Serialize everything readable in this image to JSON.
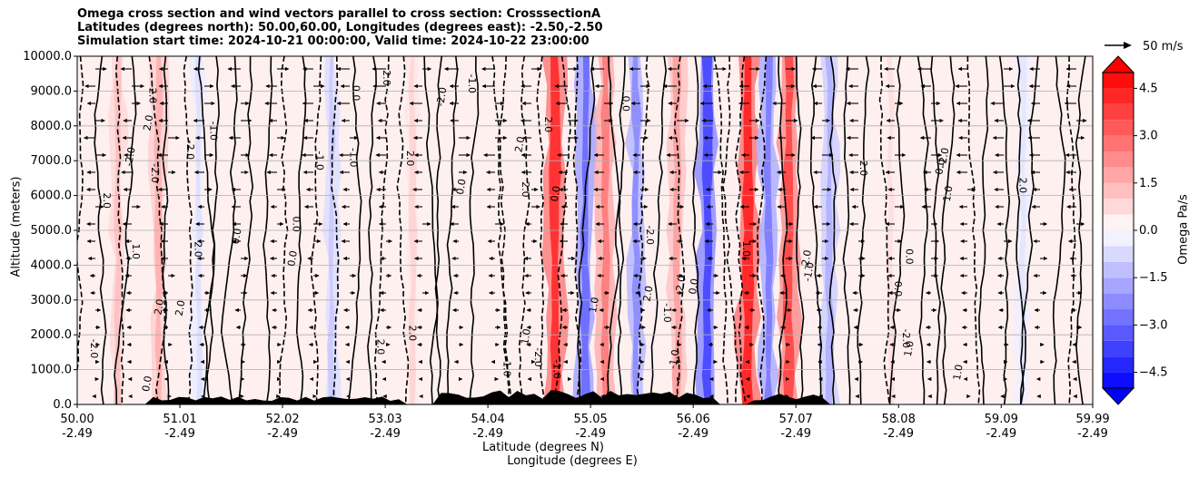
{
  "figure": {
    "title_lines": [
      "Omega cross section and wind vectors parallel to cross section: CrosssectionA",
      "Latitudes (degrees north): 50.00,60.00, Longitudes (degrees east): -2.50,-2.50",
      "Simulation start time: 2024-10-21 00:00:00, Valid time: 2024-10-22 23:00:00"
    ],
    "reference_vector_label": "50 m/s"
  },
  "chart_data": {
    "type": "heatmap",
    "ylabel": "Altitude (meters)",
    "xlabel_line1": "Latitude (degrees N)",
    "xlabel_line2": "Longitude (degrees E)",
    "ylim": [
      0,
      10000
    ],
    "yticks": [
      "0.0",
      "1000.0",
      "2000.0",
      "3000.0",
      "4000.0",
      "5000.0",
      "6000.0",
      "7000.0",
      "8000.0",
      "9000.0",
      "10000.0"
    ],
    "xlim": [
      50.0,
      59.99
    ],
    "xticks": [
      {
        "lat": "50.00",
        "lon": "-2.49"
      },
      {
        "lat": "51.01",
        "lon": "-2.49"
      },
      {
        "lat": "52.02",
        "lon": "-2.49"
      },
      {
        "lat": "53.03",
        "lon": "-2.49"
      },
      {
        "lat": "54.04",
        "lon": "-2.49"
      },
      {
        "lat": "55.05",
        "lon": "-2.49"
      },
      {
        "lat": "56.06",
        "lon": "-2.49"
      },
      {
        "lat": "57.07",
        "lon": "-2.49"
      },
      {
        "lat": "58.08",
        "lon": "-2.49"
      },
      {
        "lat": "59.09",
        "lon": "-2.49"
      },
      {
        "lat": "59.99",
        "lon": "-2.49"
      }
    ],
    "grid": "horizontal",
    "colorbar": {
      "label": "Omega Pa/s",
      "range": [
        -5.0,
        5.0
      ],
      "ticks": [
        "4.5",
        "3.0",
        "1.5",
        "0.0",
        "−1.5",
        "−3.0",
        "−4.5"
      ],
      "extend": "both",
      "colors": {
        "negative": "#0000ff",
        "zero": "#ffffff",
        "positive": "#ff0000"
      }
    },
    "contour_levels": [
      -2.0,
      -1.0,
      0.0,
      1.0,
      2.0
    ],
    "omega_bands": [
      {
        "lat": 50.4,
        "omega": 1.2
      },
      {
        "lat": 50.8,
        "omega": 1.5
      },
      {
        "lat": 51.2,
        "omega": -0.6
      },
      {
        "lat": 52.5,
        "omega": -1.0
      },
      {
        "lat": 53.3,
        "omega": 0.8
      },
      {
        "lat": 54.7,
        "omega": 4.0
      },
      {
        "lat": 55.0,
        "omega": -2.8
      },
      {
        "lat": 55.2,
        "omega": 2.5
      },
      {
        "lat": 55.5,
        "omega": -2.2
      },
      {
        "lat": 55.9,
        "omega": 1.8
      },
      {
        "lat": 56.2,
        "omega": -3.5
      },
      {
        "lat": 56.6,
        "omega": 4.2
      },
      {
        "lat": 56.8,
        "omega": -2.5
      },
      {
        "lat": 57.0,
        "omega": 3.5
      },
      {
        "lat": 57.4,
        "omega": -1.5
      },
      {
        "lat": 58.0,
        "omega": 0.6
      },
      {
        "lat": 59.3,
        "omega": -0.5
      }
    ],
    "contour_labels": [
      "0.0",
      "1.0",
      "-1.0",
      "2.0",
      "-2.0"
    ],
    "wind_vectors": "wind vectors parallel to cross section",
    "terrain": "filled black at surface"
  }
}
